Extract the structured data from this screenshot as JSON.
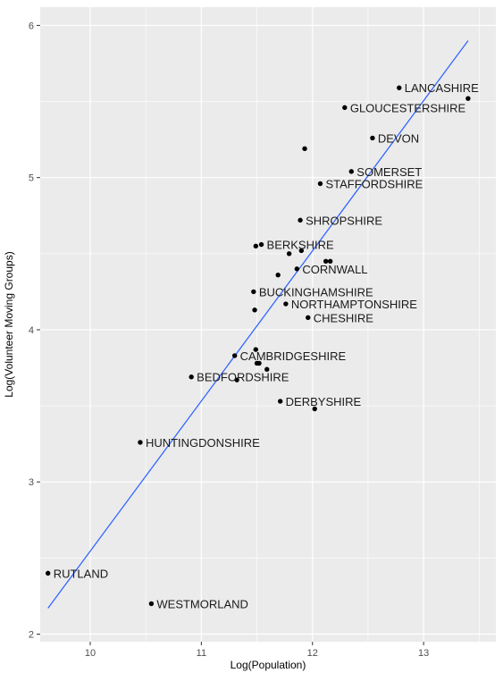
{
  "chart_data": {
    "type": "scatter",
    "title": "",
    "xlabel": "Log(Population)",
    "ylabel": "Log(Volunteer Moving Groups)",
    "xlim": [
      9.55,
      13.65
    ],
    "ylim": [
      1.95,
      6.12
    ],
    "x_ticks": [
      10,
      11,
      12,
      13
    ],
    "y_ticks": [
      2,
      3,
      4,
      5,
      6
    ],
    "grid": true,
    "background": "#ebebeb",
    "colors": {
      "point": "#000000",
      "trend": "#3366ff",
      "grid_major": "#ffffff"
    },
    "trend_line": {
      "x": [
        9.62,
        13.4
      ],
      "y": [
        2.17,
        5.9
      ]
    },
    "points": [
      {
        "x": 9.62,
        "y": 2.4,
        "label": "RUTLAND"
      },
      {
        "x": 10.55,
        "y": 2.2,
        "label": "WESTMORLAND"
      },
      {
        "x": 10.45,
        "y": 3.26,
        "label": "HUNTINGDONSHIRE"
      },
      {
        "x": 10.91,
        "y": 3.69,
        "label": "BEDFORDSHIRE"
      },
      {
        "x": 11.32,
        "y": 3.67,
        "label": ""
      },
      {
        "x": 11.3,
        "y": 3.83,
        "label": "CAMBRIDGESHIRE"
      },
      {
        "x": 11.49,
        "y": 3.87,
        "label": ""
      },
      {
        "x": 11.5,
        "y": 3.78,
        "label": ""
      },
      {
        "x": 11.52,
        "y": 3.78,
        "label": ""
      },
      {
        "x": 11.59,
        "y": 3.74,
        "label": ""
      },
      {
        "x": 11.71,
        "y": 3.53,
        "label": "DERBYSHIRE"
      },
      {
        "x": 12.02,
        "y": 3.48,
        "label": ""
      },
      {
        "x": 11.48,
        "y": 4.13,
        "label": ""
      },
      {
        "x": 11.47,
        "y": 4.25,
        "label": "BUCKINGHAMSHIRE"
      },
      {
        "x": 11.76,
        "y": 4.17,
        "label": "NORTHAMPTONSHIRE"
      },
      {
        "x": 11.96,
        "y": 4.08,
        "label": "CHESHIRE"
      },
      {
        "x": 11.69,
        "y": 4.36,
        "label": ""
      },
      {
        "x": 11.86,
        "y": 4.4,
        "label": "CORNWALL"
      },
      {
        "x": 11.49,
        "y": 4.55,
        "label": ""
      },
      {
        "x": 11.54,
        "y": 4.56,
        "label": "BERKSHIRE"
      },
      {
        "x": 11.79,
        "y": 4.5,
        "label": ""
      },
      {
        "x": 11.9,
        "y": 4.52,
        "label": ""
      },
      {
        "x": 12.12,
        "y": 4.45,
        "label": ""
      },
      {
        "x": 12.16,
        "y": 4.45,
        "label": ""
      },
      {
        "x": 11.89,
        "y": 4.72,
        "label": "SHROPSHIRE"
      },
      {
        "x": 12.07,
        "y": 4.96,
        "label": "STAFFORDSHIRE"
      },
      {
        "x": 12.35,
        "y": 5.04,
        "label": "SOMERSET"
      },
      {
        "x": 11.93,
        "y": 5.19,
        "label": ""
      },
      {
        "x": 12.54,
        "y": 5.26,
        "label": "DEVON"
      },
      {
        "x": 12.29,
        "y": 5.46,
        "label": "GLOUCESTERSHIRE"
      },
      {
        "x": 12.78,
        "y": 5.59,
        "label": "LANCASHIRE"
      },
      {
        "x": 13.4,
        "y": 5.52,
        "label": ""
      }
    ]
  }
}
